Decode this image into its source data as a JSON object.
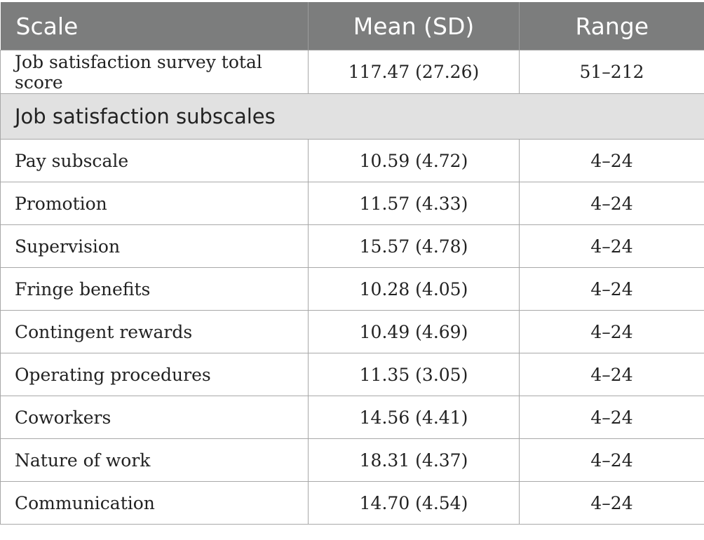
{
  "header": {
    "scale": "Scale",
    "mean_sd": "Mean (SD)",
    "range": "Range"
  },
  "total": {
    "label": "Job satisfaction survey total score",
    "mean_sd": "117.47 (27.26)",
    "range": "51–212"
  },
  "section_title": "Job satisfaction subscales",
  "rows": [
    {
      "label": "Pay subscale",
      "mean_sd": "10.59 (4.72)",
      "range": "4–24"
    },
    {
      "label": "Promotion",
      "mean_sd": "11.57 (4.33)",
      "range": "4–24"
    },
    {
      "label": "Supervision",
      "mean_sd": "15.57 (4.78)",
      "range": "4–24"
    },
    {
      "label": "Fringe benefits",
      "mean_sd": "10.28 (4.05)",
      "range": "4–24"
    },
    {
      "label": "Contingent rewards",
      "mean_sd": "10.49 (4.69)",
      "range": "4–24"
    },
    {
      "label": "Operating procedures",
      "mean_sd": "11.35 (3.05)",
      "range": "4–24"
    },
    {
      "label": "Coworkers",
      "mean_sd": "14.56 (4.41)",
      "range": "4–24"
    },
    {
      "label": "Nature of work",
      "mean_sd": "18.31 (4.37)",
      "range": "4–24"
    },
    {
      "label": "Communication",
      "mean_sd": "14.70 (4.54)",
      "range": "4–24"
    }
  ]
}
